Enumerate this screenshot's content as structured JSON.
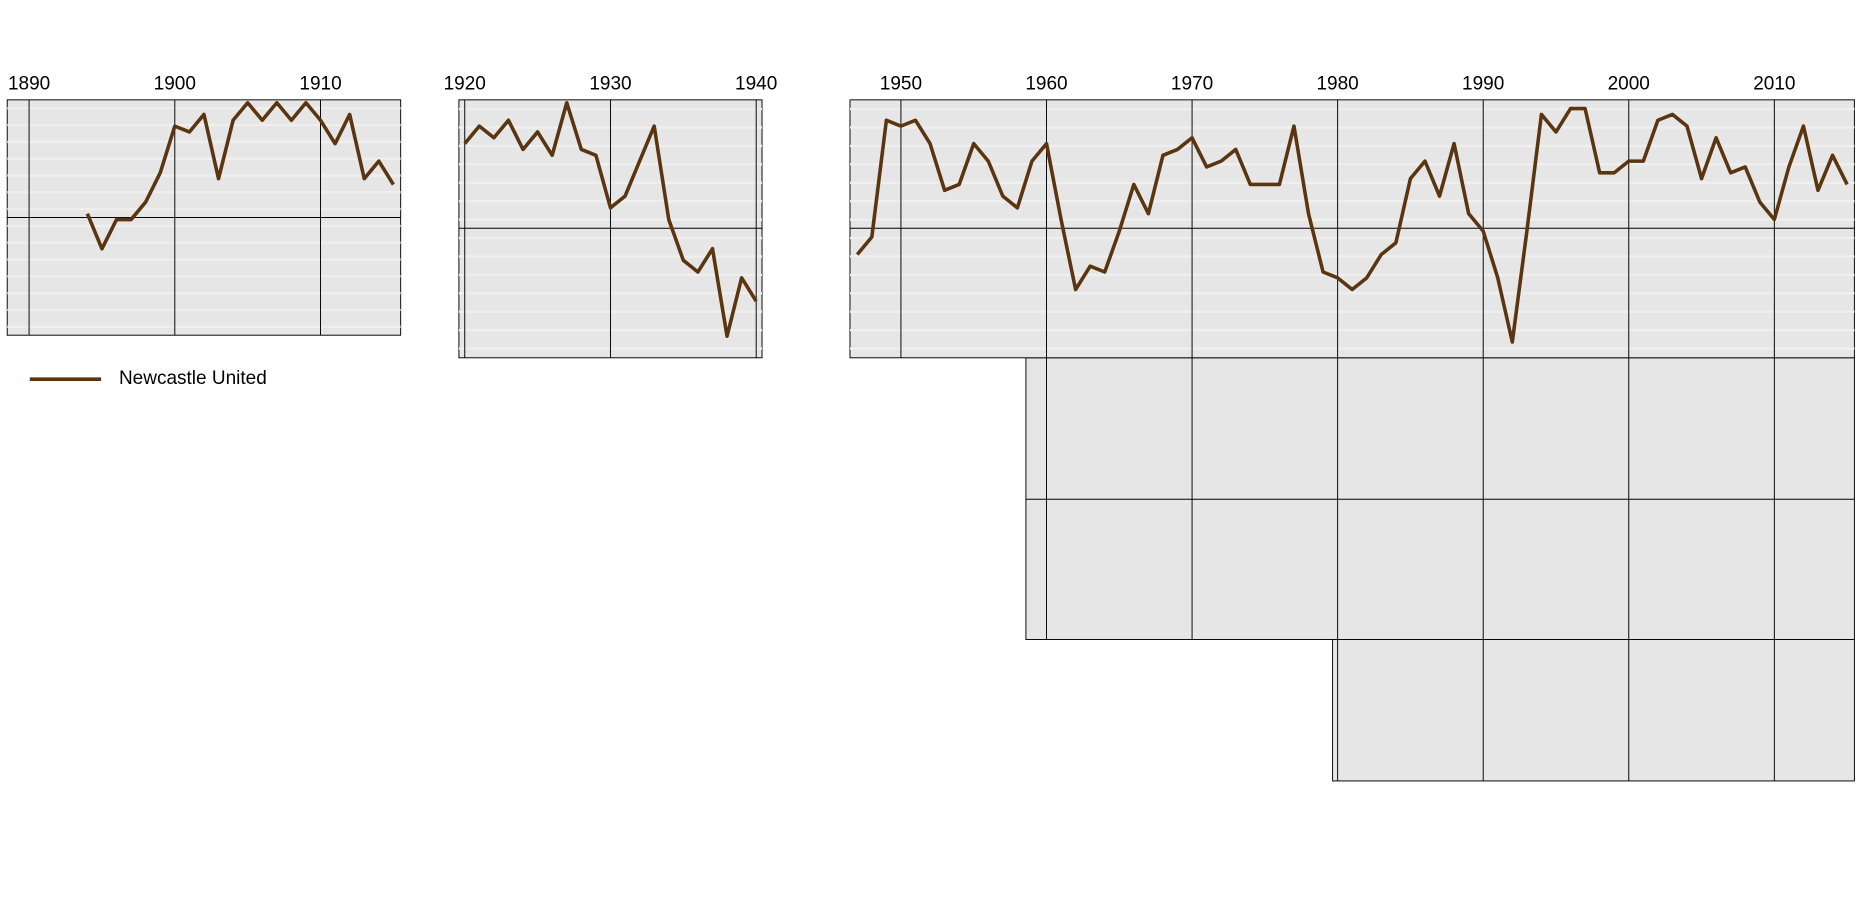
{
  "chart_data": [
    {
      "type": "line",
      "invert_y": true,
      "x": [
        1894,
        1895,
        1896,
        1897,
        1898,
        1899,
        1900,
        1901,
        1902,
        1903,
        1904,
        1905,
        1906,
        1907,
        1908,
        1909,
        1910,
        1911,
        1912,
        1913,
        1914,
        1915
      ],
      "xlim": [
        1888.5,
        1915.5
      ],
      "xticks": [
        1890,
        1900,
        1910
      ],
      "ylim": [
        0.5,
        40.8
      ],
      "grid": true,
      "series": [
        {
          "name": "Newcastle United",
          "color": "#5a3510",
          "values": [
            20,
            26,
            21,
            21,
            18,
            13,
            5,
            6,
            3,
            14,
            4,
            1,
            4,
            1,
            4,
            1,
            4,
            8,
            3,
            14,
            11,
            15
          ]
        }
      ]
    },
    {
      "type": "line",
      "invert_y": true,
      "x": [
        1920,
        1921,
        1922,
        1923,
        1924,
        1925,
        1926,
        1927,
        1928,
        1929,
        1930,
        1931,
        1932,
        1933,
        1934,
        1935,
        1936,
        1937,
        1938,
        1939,
        1940
      ],
      "xlim": [
        1919.6,
        1940.4
      ],
      "xticks": [
        1920,
        1930,
        1940
      ],
      "ylim": [
        0.5,
        44.7
      ],
      "grid": true,
      "series": [
        {
          "color": "#5a3510",
          "values": [
            8,
            5,
            7,
            4,
            9,
            6,
            10,
            1,
            9,
            10,
            19,
            17,
            11,
            5,
            21,
            28,
            30,
            26,
            41,
            31,
            35
          ]
        }
      ]
    },
    {
      "type": "line",
      "invert_y": true,
      "x": [
        1947,
        1948,
        1949,
        1950,
        1951,
        1952,
        1953,
        1954,
        1955,
        1956,
        1957,
        1958,
        1959,
        1960,
        1961,
        1962,
        1963,
        1964,
        1965,
        1966,
        1967,
        1968,
        1969,
        1970,
        1971,
        1972,
        1973,
        1974,
        1975,
        1976,
        1977,
        1978,
        1979,
        1980,
        1981,
        1982,
        1983,
        1984,
        1985,
        1986,
        1987,
        1988,
        1989,
        1990,
        1991,
        1992,
        1993,
        1994,
        1995,
        1996,
        1997,
        1998,
        1999,
        2000,
        2001,
        2002,
        2003,
        2004,
        2005,
        2006,
        2007,
        2008,
        2009,
        2010,
        2011,
        2012,
        2013,
        2014,
        2015
      ],
      "xlim": [
        1946.5,
        2015.5
      ],
      "xticks": [
        1950,
        1960,
        1970,
        1980,
        1990,
        2000,
        2010
      ],
      "ylim": [
        0.5,
        44.7
      ],
      "grid": true,
      "series": [
        {
          "color": "#5a3510",
          "values": [
            27,
            24,
            4,
            5,
            4,
            8,
            16,
            15,
            8,
            11,
            17,
            19,
            11,
            8,
            21,
            33,
            29,
            30,
            23,
            15,
            20,
            10,
            9,
            7,
            12,
            11,
            9,
            15,
            15,
            15,
            5,
            20,
            30,
            31,
            33,
            31,
            27,
            25,
            14,
            11,
            17,
            8,
            20,
            23,
            31,
            42,
            23,
            3,
            6,
            2,
            2,
            13,
            13,
            11,
            11,
            4,
            3,
            5,
            14,
            7,
            13,
            12,
            18,
            21,
            12,
            5,
            16,
            10,
            15
          ]
        }
      ]
    }
  ]
}
